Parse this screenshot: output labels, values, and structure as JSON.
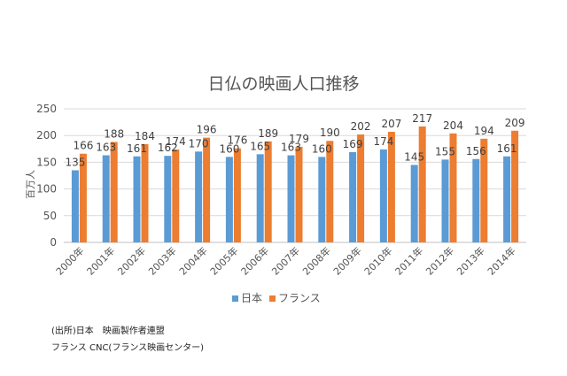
{
  "chart_data": {
    "type": "bar",
    "title": "日仏の映画人口推移",
    "ylabel": "百万人",
    "xlabel": "",
    "ylim": [
      0,
      250
    ],
    "yticks": [
      0,
      50,
      100,
      150,
      200,
      250
    ],
    "grid": true,
    "legend_position": "bottom",
    "categories": [
      "2000年",
      "2001年",
      "2002年",
      "2003年",
      "2004年",
      "2005年",
      "2006年",
      "2007年",
      "2008年",
      "2009年",
      "2010年",
      "2011年",
      "2012年",
      "2013年",
      "2014年"
    ],
    "series": [
      {
        "name": "日本",
        "color": "#5b9bd5",
        "values": [
          135,
          163,
          161,
          162,
          170,
          160,
          165,
          163,
          160,
          169,
          174,
          145,
          155,
          156,
          161
        ]
      },
      {
        "name": "フランス",
        "color": "#ed7d31",
        "values": [
          166,
          188,
          184,
          174,
          196,
          176,
          189,
          179,
          190,
          202,
          207,
          217,
          204,
          194,
          209
        ]
      }
    ]
  },
  "notes": {
    "line1": "(出所)日本　映画製作者連盟",
    "line2": "フランス CNC(フランス映画センター)"
  }
}
